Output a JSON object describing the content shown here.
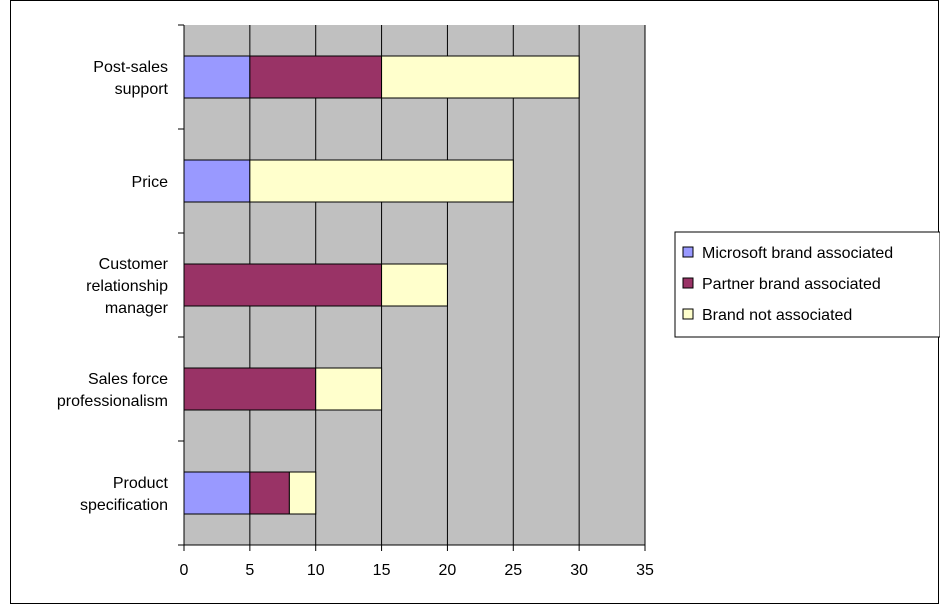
{
  "chart_data": {
    "type": "bar",
    "orientation": "horizontal",
    "stacked": true,
    "categories": [
      [
        "Post-sales",
        "support"
      ],
      [
        "Price"
      ],
      [
        "Customer",
        "relationship",
        "manager"
      ],
      [
        "Sales force",
        "professionalism"
      ],
      [
        "Product",
        "specification"
      ]
    ],
    "series": [
      {
        "name": "Microsoft brand associated",
        "color": "#9999ff",
        "values": [
          5,
          5,
          0,
          0,
          5
        ]
      },
      {
        "name": "Partner brand associated",
        "color": "#993366",
        "values": [
          10,
          0,
          15,
          10,
          3
        ]
      },
      {
        "name": "Brand not associated",
        "color": "#ffffcc",
        "values": [
          15,
          20,
          5,
          5,
          2
        ]
      }
    ],
    "xlim": [
      0,
      35
    ],
    "xticks": [
      "0",
      "5",
      "10",
      "15",
      "20",
      "25",
      "30",
      "35"
    ],
    "title": "",
    "xlabel": "",
    "ylabel": "",
    "grid": "vertical",
    "plot_background": "#c0c0c0",
    "legend_position": "right"
  }
}
